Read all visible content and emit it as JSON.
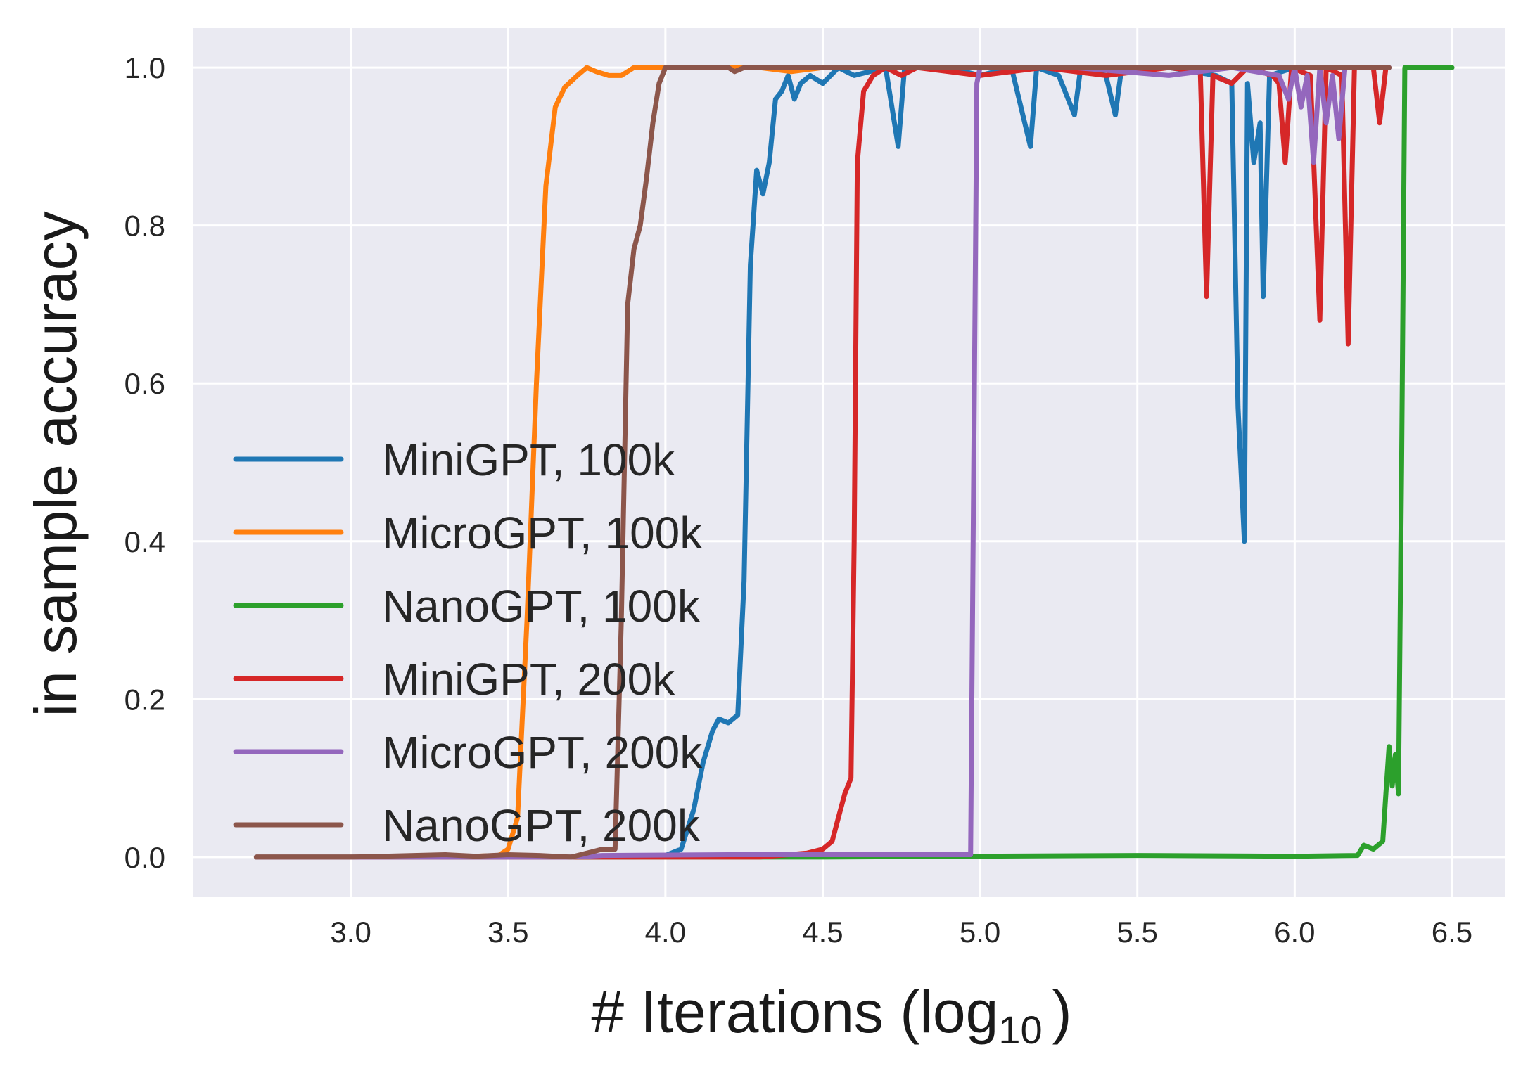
{
  "chart_data": {
    "type": "line",
    "title": "",
    "xlabel": "# Iterations (log",
    "xlabel_sub": "10",
    "xlabel_close": ")",
    "ylabel": "in sample accuracy",
    "xlim": [
      2.5,
      6.67
    ],
    "ylim": [
      -0.05,
      1.05
    ],
    "xticks": [
      3.0,
      3.5,
      4.0,
      4.5,
      5.0,
      5.5,
      6.0,
      6.5
    ],
    "xtick_labels": [
      "3.0",
      "3.5",
      "4.0",
      "4.5",
      "5.0",
      "5.5",
      "6.0",
      "6.5"
    ],
    "yticks": [
      0.0,
      0.2,
      0.4,
      0.6,
      0.8,
      1.0
    ],
    "ytick_labels": [
      "0.0",
      "0.2",
      "0.4",
      "0.6",
      "0.8",
      "1.0"
    ],
    "grid": true,
    "background": "#eaeaf2",
    "legend_position": "lower-left",
    "series": [
      {
        "name": "MiniGPT, 100k",
        "color": "#1f77b4",
        "points": [
          [
            2.7,
            0
          ],
          [
            3.5,
            0
          ],
          [
            3.9,
            0
          ],
          [
            4.0,
            0.002
          ],
          [
            4.05,
            0.01
          ],
          [
            4.09,
            0.06
          ],
          [
            4.12,
            0.12
          ],
          [
            4.15,
            0.16
          ],
          [
            4.17,
            0.175
          ],
          [
            4.2,
            0.17
          ],
          [
            4.23,
            0.18
          ],
          [
            4.25,
            0.35
          ],
          [
            4.27,
            0.75
          ],
          [
            4.29,
            0.87
          ],
          [
            4.31,
            0.84
          ],
          [
            4.33,
            0.88
          ],
          [
            4.35,
            0.96
          ],
          [
            4.37,
            0.97
          ],
          [
            4.39,
            0.99
          ],
          [
            4.41,
            0.96
          ],
          [
            4.43,
            0.98
          ],
          [
            4.46,
            0.99
          ],
          [
            4.5,
            0.98
          ],
          [
            4.55,
            1.0
          ],
          [
            4.6,
            0.99
          ],
          [
            4.7,
            1.0
          ],
          [
            4.74,
            0.9
          ],
          [
            4.76,
            1.0
          ],
          [
            4.9,
            1.0
          ],
          [
            5.0,
            0.99
          ],
          [
            5.1,
            1.0
          ],
          [
            5.16,
            0.9
          ],
          [
            5.18,
            1.0
          ],
          [
            5.25,
            0.99
          ],
          [
            5.3,
            0.94
          ],
          [
            5.32,
            1.0
          ],
          [
            5.4,
            0.99
          ],
          [
            5.43,
            0.94
          ],
          [
            5.45,
            1.0
          ],
          [
            5.6,
            1.0
          ],
          [
            5.75,
            0.99
          ],
          [
            5.8,
            0.98
          ],
          [
            5.82,
            0.57
          ],
          [
            5.84,
            0.4
          ],
          [
            5.85,
            0.98
          ],
          [
            5.87,
            0.88
          ],
          [
            5.89,
            0.93
          ],
          [
            5.9,
            0.71
          ],
          [
            5.92,
            0.99
          ],
          [
            6.0,
            1.0
          ],
          [
            6.1,
            1.0
          ],
          [
            6.3,
            1.0
          ]
        ]
      },
      {
        "name": "MicroGPT, 100k",
        "color": "#ff7f0e",
        "points": [
          [
            2.7,
            0
          ],
          [
            3.3,
            0
          ],
          [
            3.47,
            0.002
          ],
          [
            3.5,
            0.01
          ],
          [
            3.53,
            0.05
          ],
          [
            3.56,
            0.3
          ],
          [
            3.59,
            0.6
          ],
          [
            3.62,
            0.85
          ],
          [
            3.65,
            0.95
          ],
          [
            3.68,
            0.975
          ],
          [
            3.72,
            0.99
          ],
          [
            3.75,
            1.0
          ],
          [
            3.78,
            0.995
          ],
          [
            3.82,
            0.99
          ],
          [
            3.86,
            0.99
          ],
          [
            3.9,
            1.0
          ],
          [
            4.0,
            1.0
          ],
          [
            4.3,
            1.0
          ],
          [
            4.4,
            0.995
          ],
          [
            4.5,
            1.0
          ]
        ]
      },
      {
        "name": "NanoGPT, 100k",
        "color": "#2ca02c",
        "points": [
          [
            2.7,
            0
          ],
          [
            3.5,
            0
          ],
          [
            4.0,
            0
          ],
          [
            4.5,
            0
          ],
          [
            5.0,
            0.001
          ],
          [
            5.5,
            0.002
          ],
          [
            6.0,
            0.001
          ],
          [
            6.2,
            0.002
          ],
          [
            6.22,
            0.015
          ],
          [
            6.25,
            0.01
          ],
          [
            6.28,
            0.02
          ],
          [
            6.29,
            0.08
          ],
          [
            6.3,
            0.14
          ],
          [
            6.31,
            0.09
          ],
          [
            6.32,
            0.13
          ],
          [
            6.33,
            0.08
          ],
          [
            6.34,
            0.5
          ],
          [
            6.35,
            1.0
          ],
          [
            6.4,
            1.0
          ],
          [
            6.5,
            1.0
          ]
        ]
      },
      {
        "name": "MiniGPT, 200k",
        "color": "#d62728",
        "points": [
          [
            2.7,
            0
          ],
          [
            4.0,
            0
          ],
          [
            4.3,
            0
          ],
          [
            4.45,
            0.005
          ],
          [
            4.5,
            0.01
          ],
          [
            4.53,
            0.02
          ],
          [
            4.55,
            0.05
          ],
          [
            4.57,
            0.08
          ],
          [
            4.59,
            0.1
          ],
          [
            4.6,
            0.4
          ],
          [
            4.61,
            0.88
          ],
          [
            4.63,
            0.97
          ],
          [
            4.66,
            0.99
          ],
          [
            4.7,
            1.0
          ],
          [
            4.75,
            0.99
          ],
          [
            4.8,
            1.0
          ],
          [
            5.0,
            0.99
          ],
          [
            5.2,
            1.0
          ],
          [
            5.4,
            0.99
          ],
          [
            5.6,
            1.0
          ],
          [
            5.7,
            0.995
          ],
          [
            5.72,
            0.71
          ],
          [
            5.74,
            0.99
          ],
          [
            5.8,
            0.98
          ],
          [
            5.85,
            1.0
          ],
          [
            5.93,
            0.99
          ],
          [
            5.95,
            0.98
          ],
          [
            5.97,
            0.88
          ],
          [
            5.99,
            1.0
          ],
          [
            6.05,
            0.99
          ],
          [
            6.08,
            0.68
          ],
          [
            6.1,
            1.0
          ],
          [
            6.15,
            0.99
          ],
          [
            6.17,
            0.65
          ],
          [
            6.19,
            1.0
          ],
          [
            6.25,
            1.0
          ],
          [
            6.27,
            0.93
          ],
          [
            6.29,
            1.0
          ],
          [
            6.3,
            1.0
          ]
        ]
      },
      {
        "name": "MicroGPT, 200k",
        "color": "#9467bd",
        "points": [
          [
            2.7,
            0
          ],
          [
            3.7,
            0
          ],
          [
            3.8,
            0.002
          ],
          [
            4.2,
            0.003
          ],
          [
            4.5,
            0.003
          ],
          [
            4.8,
            0.003
          ],
          [
            4.97,
            0.003
          ],
          [
            4.98,
            0.5
          ],
          [
            4.99,
            0.98
          ],
          [
            5.0,
            1.0
          ],
          [
            5.3,
            1.0
          ],
          [
            5.6,
            0.99
          ],
          [
            5.8,
            1.0
          ],
          [
            5.95,
            0.99
          ],
          [
            5.98,
            0.96
          ],
          [
            6.0,
            1.0
          ],
          [
            6.02,
            0.95
          ],
          [
            6.04,
            0.99
          ],
          [
            6.06,
            0.88
          ],
          [
            6.08,
            1.0
          ],
          [
            6.1,
            0.93
          ],
          [
            6.12,
            0.99
          ],
          [
            6.14,
            0.91
          ],
          [
            6.16,
            1.0
          ],
          [
            6.3,
            1.0
          ]
        ]
      },
      {
        "name": "NanoGPT, 200k",
        "color": "#8c564b",
        "points": [
          [
            2.7,
            0
          ],
          [
            3.0,
            0
          ],
          [
            3.2,
            0.002
          ],
          [
            3.3,
            0.003
          ],
          [
            3.4,
            0.001
          ],
          [
            3.5,
            0.003
          ],
          [
            3.6,
            0.002
          ],
          [
            3.7,
            0
          ],
          [
            3.75,
            0.005
          ],
          [
            3.8,
            0.01
          ],
          [
            3.84,
            0.01
          ],
          [
            3.86,
            0.3
          ],
          [
            3.88,
            0.7
          ],
          [
            3.9,
            0.77
          ],
          [
            3.92,
            0.8
          ],
          [
            3.94,
            0.86
          ],
          [
            3.96,
            0.93
          ],
          [
            3.98,
            0.98
          ],
          [
            4.0,
            1.0
          ],
          [
            4.1,
            1.0
          ],
          [
            4.2,
            1.0
          ],
          [
            4.22,
            0.995
          ],
          [
            4.25,
            1.0
          ],
          [
            4.5,
            1.0
          ],
          [
            5.0,
            1.0
          ],
          [
            5.5,
            1.0
          ],
          [
            6.0,
            1.0
          ],
          [
            6.3,
            1.0
          ]
        ]
      }
    ]
  }
}
